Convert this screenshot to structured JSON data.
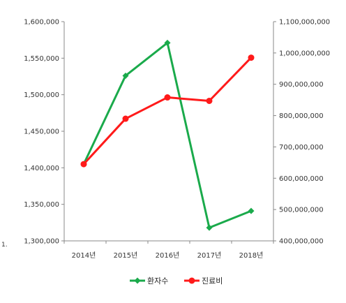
{
  "stray_text": "1.",
  "chart_data": {
    "type": "line",
    "categories": [
      "2014년",
      "2015년",
      "2016년",
      "2017년",
      "2018년"
    ],
    "series": [
      {
        "name": "환자수",
        "axis": "left",
        "color": "#1aaa4b",
        "marker": "diamond",
        "values": [
          1405000,
          1526000,
          1571000,
          1318000,
          1341000
        ]
      },
      {
        "name": "진료비",
        "axis": "right",
        "color": "#ff1a1a",
        "marker": "circle",
        "values": [
          645000000,
          790000000,
          858000000,
          847000000,
          985000000
        ]
      }
    ],
    "y_left": {
      "ylim": [
        1300000,
        1600000
      ],
      "ticks": [
        "1,300,000",
        "1,350,000",
        "1,400,000",
        "1,450,000",
        "1,500,000",
        "1,550,000",
        "1,600,000"
      ]
    },
    "y_right": {
      "ylim": [
        400000000,
        1100000000
      ],
      "ticks": [
        "400,000,000",
        "500,000,000",
        "600,000,000",
        "700,000,000",
        "800,000,000",
        "900,000,000",
        "1,000,000,000",
        "1,100,000,000"
      ]
    },
    "grid": false,
    "legend": "bottom"
  }
}
